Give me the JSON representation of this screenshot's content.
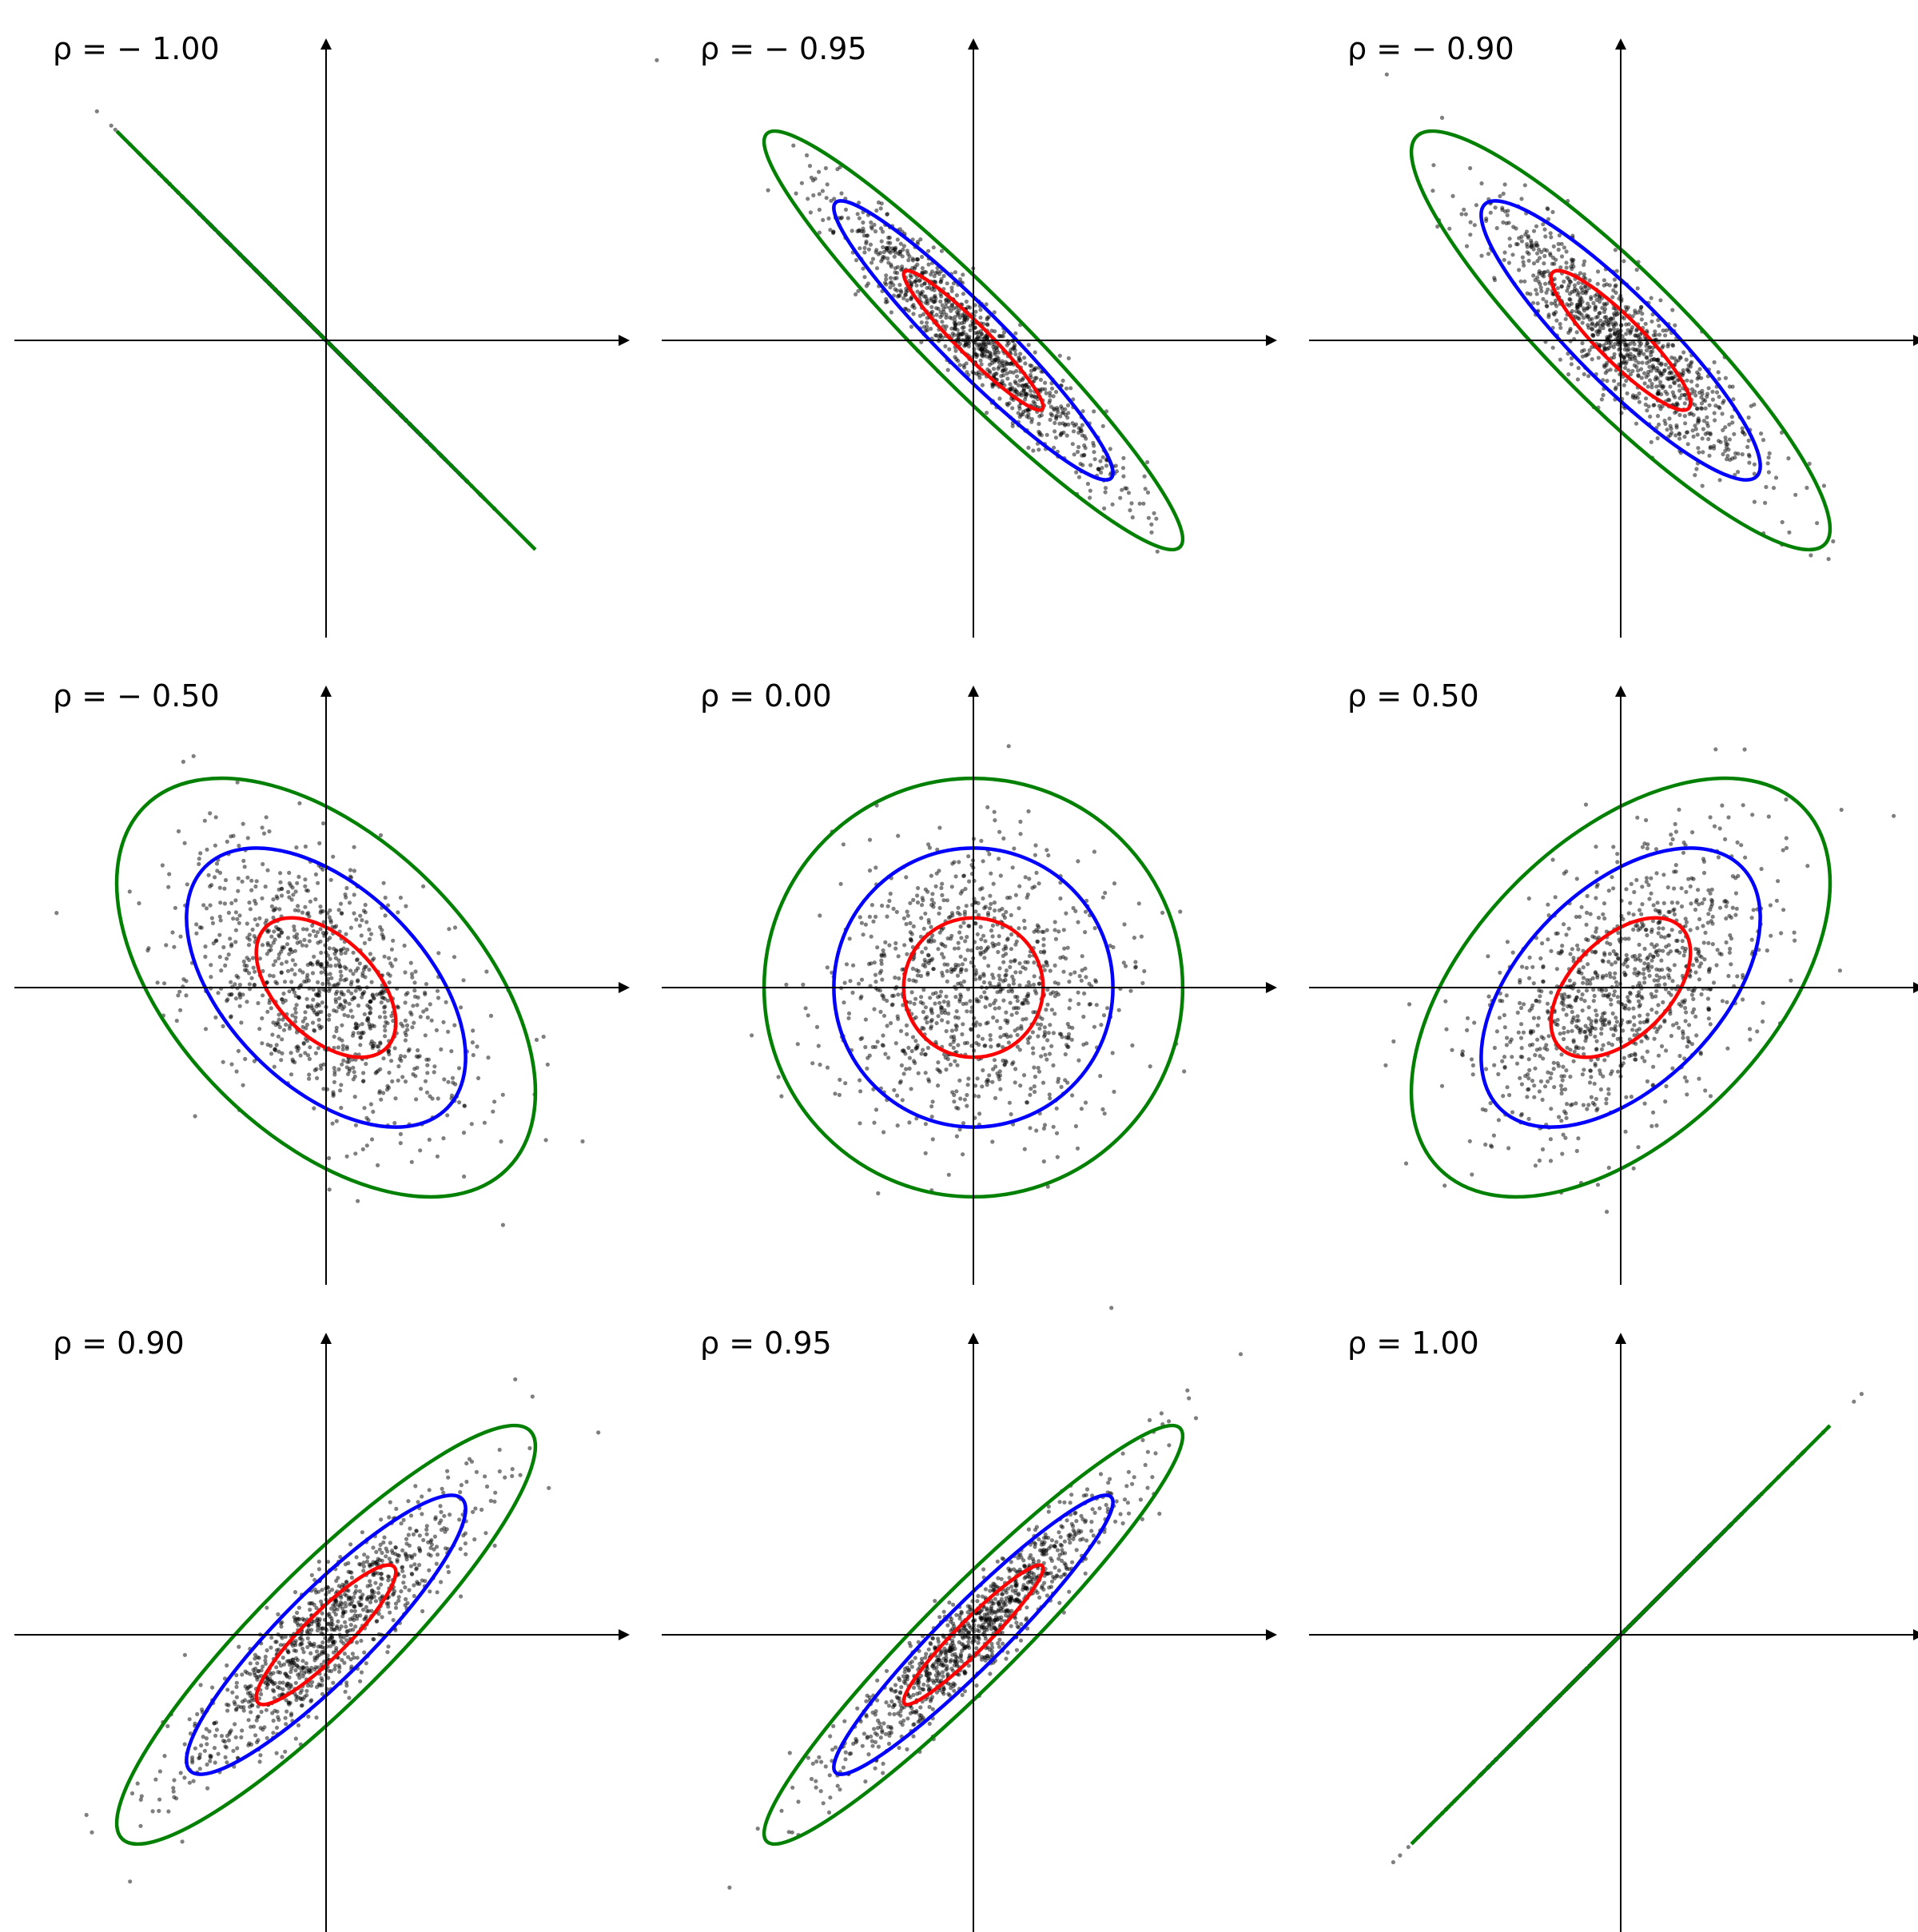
{
  "chart_data": [
    {
      "type": "scatter",
      "label": "ρ = − 1.00",
      "rho": -1.0,
      "xlim": [
        -4.2,
        4.2
      ],
      "ylim": [
        -4.2,
        4.2
      ],
      "contours": [
        "red",
        "blue",
        "green"
      ],
      "contour_levels_sigma": [
        1,
        2,
        3
      ],
      "grid": false,
      "sample_size": 1000,
      "point_color": "#000000"
    },
    {
      "type": "scatter",
      "label": "ρ = − 0.95",
      "rho": -0.95,
      "xlim": [
        -4.2,
        4.2
      ],
      "ylim": [
        -4.2,
        4.2
      ],
      "contours": [
        "red",
        "blue",
        "green"
      ],
      "contour_levels_sigma": [
        1,
        2,
        3
      ],
      "grid": false,
      "sample_size": 1000,
      "point_color": "#000000"
    },
    {
      "type": "scatter",
      "label": "ρ = − 0.90",
      "rho": -0.9,
      "xlim": [
        -4.2,
        4.2
      ],
      "ylim": [
        -4.2,
        4.2
      ],
      "contours": [
        "red",
        "blue",
        "green"
      ],
      "contour_levels_sigma": [
        1,
        2,
        3
      ],
      "grid": false,
      "sample_size": 1000,
      "point_color": "#000000"
    },
    {
      "type": "scatter",
      "label": "ρ = − 0.50",
      "rho": -0.5,
      "xlim": [
        -4.2,
        4.2
      ],
      "ylim": [
        -4.2,
        4.2
      ],
      "contours": [
        "red",
        "blue",
        "green"
      ],
      "contour_levels_sigma": [
        1,
        2,
        3
      ],
      "grid": false,
      "sample_size": 1000,
      "point_color": "#000000"
    },
    {
      "type": "scatter",
      "label": "ρ = 0.00",
      "rho": 0.0,
      "xlim": [
        -4.2,
        4.2
      ],
      "ylim": [
        -4.2,
        4.2
      ],
      "contours": [
        "red",
        "blue",
        "green"
      ],
      "contour_levels_sigma": [
        1,
        2,
        3
      ],
      "grid": false,
      "sample_size": 1000,
      "point_color": "#000000"
    },
    {
      "type": "scatter",
      "label": "ρ = 0.50",
      "rho": 0.5,
      "xlim": [
        -4.2,
        4.2
      ],
      "ylim": [
        -4.2,
        4.2
      ],
      "contours": [
        "red",
        "blue",
        "green"
      ],
      "contour_levels_sigma": [
        1,
        2,
        3
      ],
      "grid": false,
      "sample_size": 1000,
      "point_color": "#000000"
    },
    {
      "type": "scatter",
      "label": "ρ = 0.90",
      "rho": 0.9,
      "xlim": [
        -4.2,
        4.2
      ],
      "ylim": [
        -4.2,
        4.2
      ],
      "contours": [
        "red",
        "blue",
        "green"
      ],
      "contour_levels_sigma": [
        1,
        2,
        3
      ],
      "grid": false,
      "sample_size": 1000,
      "point_color": "#000000"
    },
    {
      "type": "scatter",
      "label": "ρ = 0.95",
      "rho": 0.95,
      "xlim": [
        -4.2,
        4.2
      ],
      "ylim": [
        -4.2,
        4.2
      ],
      "contours": [
        "red",
        "blue",
        "green"
      ],
      "contour_levels_sigma": [
        1,
        2,
        3
      ],
      "grid": false,
      "sample_size": 1000,
      "point_color": "#000000"
    },
    {
      "type": "scatter",
      "label": "ρ = 1.00",
      "rho": 1.0,
      "xlim": [
        -4.2,
        4.2
      ],
      "ylim": [
        -4.2,
        4.2
      ],
      "contours": [
        "red",
        "blue",
        "green"
      ],
      "contour_levels_sigma": [
        1,
        2,
        3
      ],
      "grid": false,
      "sample_size": 1000,
      "point_color": "#000000"
    }
  ],
  "colors": {
    "red": "#ff0000",
    "blue": "#0000ff",
    "green": "#008000",
    "axis": "#000000"
  }
}
